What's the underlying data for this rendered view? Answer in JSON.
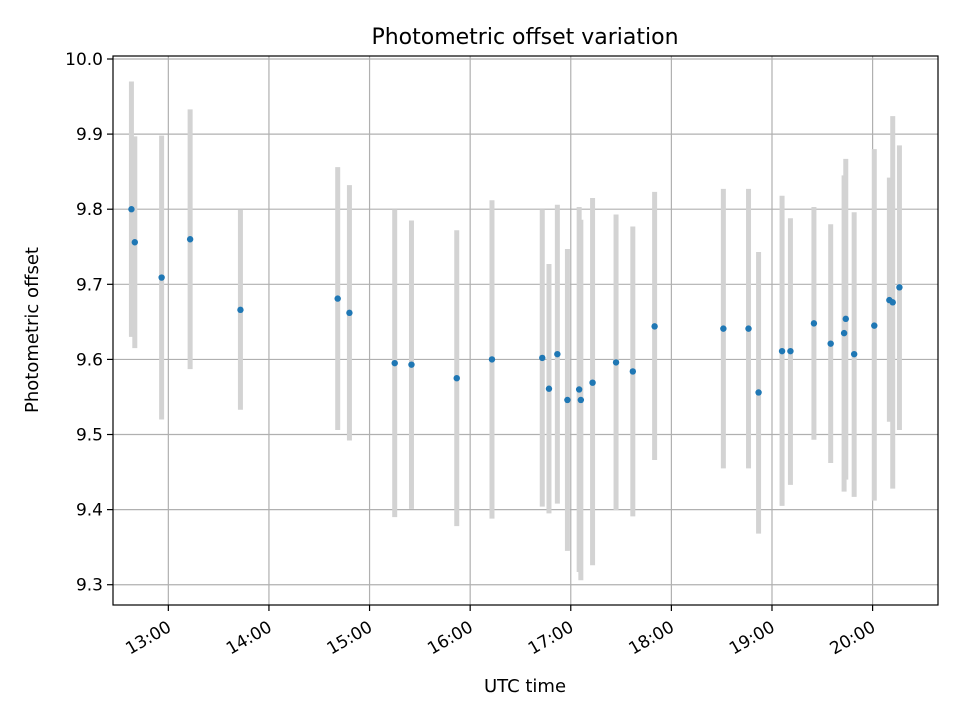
{
  "chart_data": {
    "type": "scatter",
    "title": "Photometric offset variation",
    "xlabel": "UTC time",
    "ylabel": "Photometric offset",
    "xlim": [
      "12:27",
      "20:39"
    ],
    "ylim": [
      9.273,
      10.004
    ],
    "xticks": [
      "13:00",
      "14:00",
      "15:00",
      "16:00",
      "17:00",
      "18:00",
      "19:00",
      "20:00"
    ],
    "yticks": [
      "9.3",
      "9.4",
      "9.5",
      "9.6",
      "9.7",
      "9.8",
      "9.9",
      "10.0"
    ],
    "grid": true,
    "colors": {
      "points": "#1f77b4",
      "errorbars": "#d3d3d3",
      "grid": "#b0b0b0"
    },
    "points": [
      {
        "x": "12:38",
        "y": 9.8,
        "ylo": 9.63,
        "yhi": 9.97
      },
      {
        "x": "12:40",
        "y": 9.756,
        "ylo": 9.615,
        "yhi": 9.897
      },
      {
        "x": "12:56",
        "y": 9.709,
        "ylo": 9.52,
        "yhi": 9.898
      },
      {
        "x": "13:13",
        "y": 9.76,
        "ylo": 9.587,
        "yhi": 9.933
      },
      {
        "x": "13:43",
        "y": 9.666,
        "ylo": 9.533,
        "yhi": 9.799
      },
      {
        "x": "14:41",
        "y": 9.681,
        "ylo": 9.506,
        "yhi": 9.856
      },
      {
        "x": "14:48",
        "y": 9.662,
        "ylo": 9.492,
        "yhi": 9.832
      },
      {
        "x": "15:15",
        "y": 9.595,
        "ylo": 9.39,
        "yhi": 9.8
      },
      {
        "x": "15:25",
        "y": 9.593,
        "ylo": 9.401,
        "yhi": 9.785
      },
      {
        "x": "15:52",
        "y": 9.575,
        "ylo": 9.378,
        "yhi": 9.772
      },
      {
        "x": "16:13",
        "y": 9.6,
        "ylo": 9.388,
        "yhi": 9.812
      },
      {
        "x": "16:43",
        "y": 9.602,
        "ylo": 9.404,
        "yhi": 9.8
      },
      {
        "x": "16:47",
        "y": 9.561,
        "ylo": 9.395,
        "yhi": 9.727
      },
      {
        "x": "16:52",
        "y": 9.607,
        "ylo": 9.408,
        "yhi": 9.806
      },
      {
        "x": "16:58",
        "y": 9.546,
        "ylo": 9.345,
        "yhi": 9.747
      },
      {
        "x": "17:05",
        "y": 9.56,
        "ylo": 9.317,
        "yhi": 9.803
      },
      {
        "x": "17:06",
        "y": 9.546,
        "ylo": 9.306,
        "yhi": 9.786
      },
      {
        "x": "17:13",
        "y": 9.569,
        "ylo": 9.326,
        "yhi": 9.815
      },
      {
        "x": "17:27",
        "y": 9.596,
        "ylo": 9.399,
        "yhi": 9.793
      },
      {
        "x": "17:37",
        "y": 9.584,
        "ylo": 9.391,
        "yhi": 9.777
      },
      {
        "x": "17:50",
        "y": 9.644,
        "ylo": 9.466,
        "yhi": 9.823
      },
      {
        "x": "18:31",
        "y": 9.641,
        "ylo": 9.455,
        "yhi": 9.827
      },
      {
        "x": "18:46",
        "y": 9.641,
        "ylo": 9.455,
        "yhi": 9.827
      },
      {
        "x": "18:52",
        "y": 9.556,
        "ylo": 9.368,
        "yhi": 9.743
      },
      {
        "x": "19:06",
        "y": 9.611,
        "ylo": 9.405,
        "yhi": 9.818
      },
      {
        "x": "19:11",
        "y": 9.611,
        "ylo": 9.433,
        "yhi": 9.788
      },
      {
        "x": "19:25",
        "y": 9.648,
        "ylo": 9.493,
        "yhi": 9.803
      },
      {
        "x": "19:35",
        "y": 9.621,
        "ylo": 9.462,
        "yhi": 9.78
      },
      {
        "x": "19:43",
        "y": 9.635,
        "ylo": 9.424,
        "yhi": 9.845
      },
      {
        "x": "19:44",
        "y": 9.654,
        "ylo": 9.44,
        "yhi": 9.867
      },
      {
        "x": "19:49",
        "y": 9.607,
        "ylo": 9.417,
        "yhi": 9.796
      },
      {
        "x": "20:01",
        "y": 9.645,
        "ylo": 9.412,
        "yhi": 9.88
      },
      {
        "x": "20:10",
        "y": 9.679,
        "ylo": 9.517,
        "yhi": 9.842
      },
      {
        "x": "20:12",
        "y": 9.676,
        "ylo": 9.428,
        "yhi": 9.924
      },
      {
        "x": "20:16",
        "y": 9.696,
        "ylo": 9.506,
        "yhi": 9.885
      }
    ]
  }
}
